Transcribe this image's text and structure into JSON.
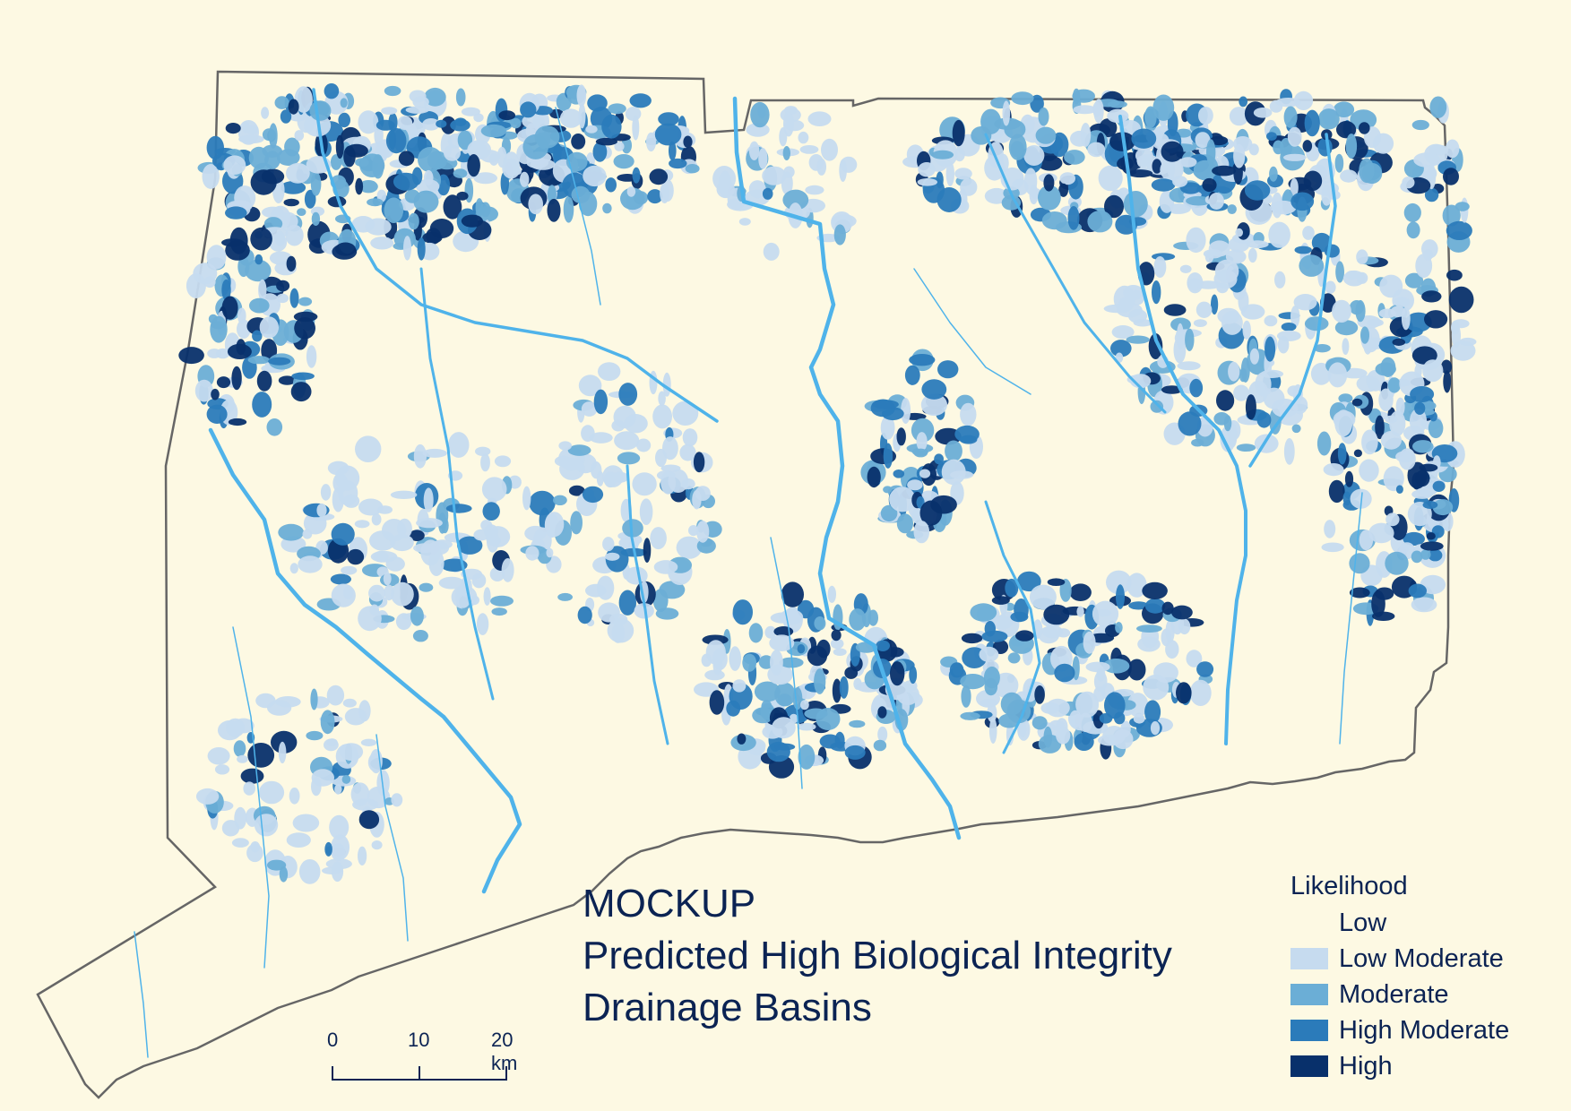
{
  "title": {
    "line1": "MOCKUP",
    "line2": "Predicted High Biological Integrity",
    "line3": "Drainage Basins"
  },
  "legend": {
    "title": "Likelihood",
    "items": [
      {
        "label": "Low",
        "color": "#fdf9e3"
      },
      {
        "label": "Low Moderate",
        "color": "#c6dbef"
      },
      {
        "label": "Moderate",
        "color": "#6baed6"
      },
      {
        "label": "High Moderate",
        "color": "#2b7bba"
      },
      {
        "label": "High",
        "color": "#08306b"
      }
    ]
  },
  "scalebar": {
    "labels": [
      "0",
      "10",
      "20 km"
    ]
  },
  "colors": {
    "background": "#fdf9e3",
    "boundary": "#666666",
    "river": "#4fb3ea",
    "text": "#0b2353"
  }
}
